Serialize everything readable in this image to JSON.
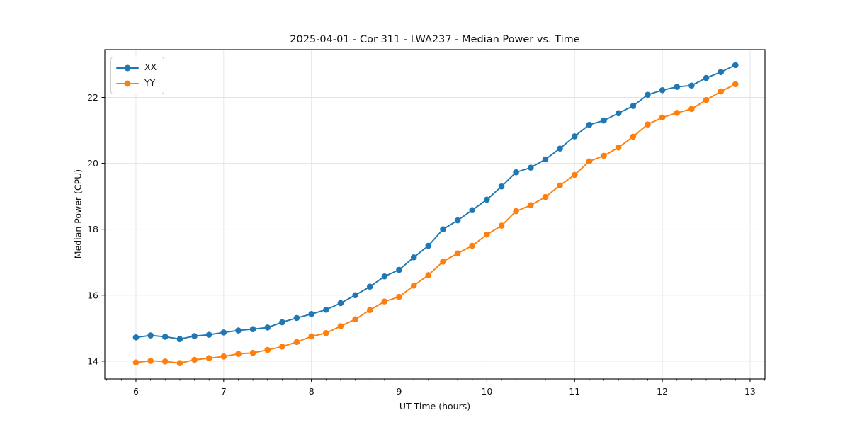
{
  "chart_data": {
    "type": "line",
    "title": "2025-04-01 - Cor 311 - LWA237 - Median Power vs. Time",
    "xlabel": "UT Time (hours)",
    "ylabel": "Median Power (CPU)",
    "xlim": [
      5.645,
      13.17
    ],
    "ylim": [
      13.46,
      23.45
    ],
    "x_ticks": [
      6,
      7,
      8,
      9,
      10,
      11,
      12,
      13
    ],
    "y_ticks": [
      14,
      16,
      18,
      20,
      22
    ],
    "x_minor_step": 0.16667,
    "grid": true,
    "grid_color": "#e3e3e3",
    "legend_position": "upper-left",
    "x": [
      6.0,
      6.167,
      6.333,
      6.5,
      6.667,
      6.833,
      7.0,
      7.167,
      7.333,
      7.5,
      7.667,
      7.833,
      8.0,
      8.167,
      8.333,
      8.5,
      8.667,
      8.833,
      9.0,
      9.167,
      9.333,
      9.5,
      9.667,
      9.833,
      10.0,
      10.167,
      10.333,
      10.5,
      10.667,
      10.833,
      11.0,
      11.167,
      11.333,
      11.5,
      11.667,
      11.833,
      12.0,
      12.167,
      12.333,
      12.5,
      12.667,
      12.833
    ],
    "series": [
      {
        "name": "XX",
        "color": "#1f77b4",
        "values": [
          14.72,
          14.78,
          14.74,
          14.67,
          14.76,
          14.8,
          14.87,
          14.93,
          14.97,
          15.02,
          15.18,
          15.31,
          15.43,
          15.56,
          15.76,
          16.0,
          16.26,
          16.57,
          16.77,
          17.15,
          17.5,
          18.0,
          18.27,
          18.58,
          18.9,
          19.3,
          19.73,
          19.87,
          20.12,
          20.45,
          20.82,
          21.17,
          21.3,
          21.52,
          21.74,
          22.08,
          22.22,
          22.32,
          22.36,
          22.59,
          22.77,
          22.98
        ]
      },
      {
        "name": "YY",
        "color": "#ff7f0e",
        "values": [
          13.96,
          14.01,
          13.99,
          13.94,
          14.04,
          14.09,
          14.14,
          14.22,
          14.25,
          14.34,
          14.44,
          14.58,
          14.75,
          14.85,
          15.06,
          15.27,
          15.55,
          15.81,
          15.95,
          16.29,
          16.61,
          17.02,
          17.27,
          17.5,
          17.84,
          18.11,
          18.55,
          18.73,
          18.98,
          19.33,
          19.65,
          20.06,
          20.23,
          20.48,
          20.81,
          21.18,
          21.39,
          21.53,
          21.65,
          21.92,
          22.18,
          22.4
        ]
      }
    ]
  }
}
